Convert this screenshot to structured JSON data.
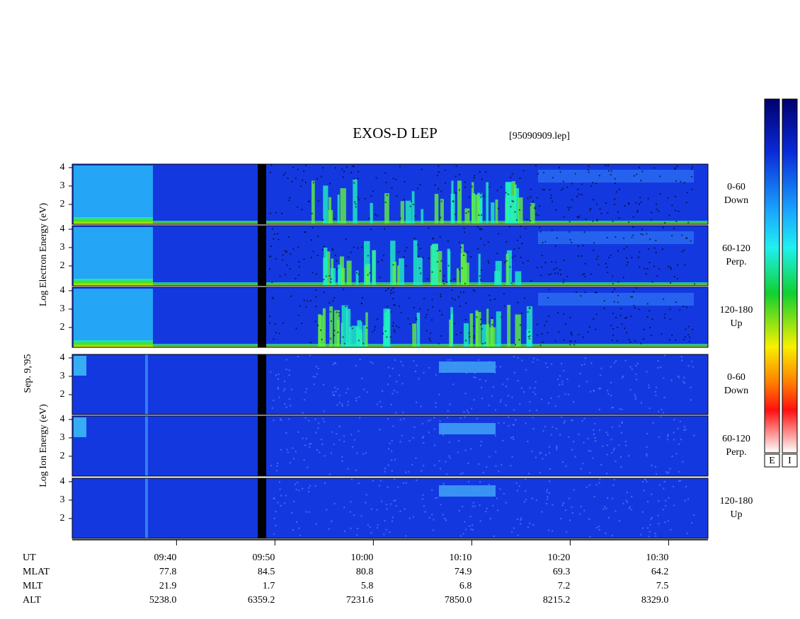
{
  "chart_data": {
    "type": "spectrogram",
    "title": "EXOS-D LEP",
    "file": "[95090909.lep]",
    "date": "Sep. 9,'95",
    "electron_axis_label": "Log  Electron  Energy (eV)",
    "ion_axis_label": "Log  Ion  Energy (eV)",
    "ylim": [
      0.92,
      4.19
    ],
    "yticks": [
      2,
      3,
      4
    ],
    "xlim": [
      569.4,
      634
    ],
    "xticks": [
      {
        "value": 580,
        "label": "09:40"
      },
      {
        "value": 590,
        "label": "09:50"
      },
      {
        "value": 600,
        "label": "10:00"
      },
      {
        "value": 610,
        "label": "10:10"
      },
      {
        "value": 620,
        "label": "10:20"
      },
      {
        "value": 630,
        "label": "10:30"
      }
    ],
    "x_label": "UT",
    "orbit_rows": [
      {
        "name": "MLAT",
        "labels": [
          "77.8",
          "84.5",
          "80.8",
          "74.9",
          "69.3",
          "64.2"
        ]
      },
      {
        "name": "MLT",
        "labels": [
          "21.9",
          "1.7",
          "5.8",
          "6.8",
          "7.2",
          "7.5"
        ]
      },
      {
        "name": "ALT",
        "labels": [
          "5238.0",
          "6359.2",
          "7231.6",
          "7850.0",
          "8215.2",
          "8329.0"
        ]
      }
    ],
    "panels": [
      {
        "species": "electron",
        "angle": "0-60",
        "direction": "Down"
      },
      {
        "species": "electron",
        "angle": "60-120",
        "direction": "Perp."
      },
      {
        "species": "electron",
        "angle": "120-180",
        "direction": "Up"
      },
      {
        "species": "ion",
        "angle": "0-60",
        "direction": "Down"
      },
      {
        "species": "ion",
        "angle": "60-120",
        "direction": "Perp."
      },
      {
        "species": "ion",
        "angle": "120-180",
        "direction": "Up"
      }
    ],
    "colorbars": [
      "E",
      "I"
    ]
  }
}
